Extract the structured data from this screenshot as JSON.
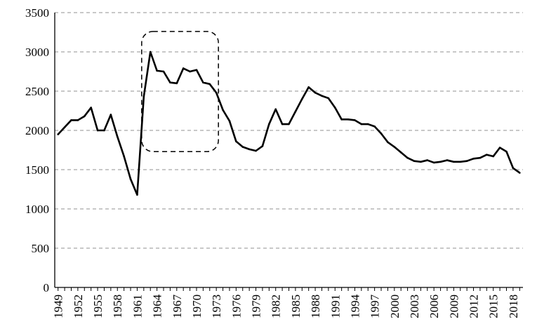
{
  "chart_data": {
    "type": "line",
    "title": "",
    "xlabel": "",
    "ylabel": "",
    "ylim": [
      0,
      3500
    ],
    "yticks": [
      0,
      500,
      1000,
      1500,
      2000,
      2500,
      3000,
      3500
    ],
    "grid": "horizontal dashed",
    "legend": "none",
    "x_tick_labels": [
      "1949",
      "1952",
      "1955",
      "1958",
      "1961",
      "1964",
      "1967",
      "1970",
      "1973",
      "1976",
      "1979",
      "1982",
      "1985",
      "1988",
      "1991",
      "1994",
      "1997",
      "2000",
      "2003",
      "2006",
      "2009",
      "2012",
      "2015",
      "2018"
    ],
    "x": [
      1949,
      1950,
      1951,
      1952,
      1953,
      1954,
      1955,
      1956,
      1957,
      1958,
      1959,
      1960,
      1961,
      1962,
      1963,
      1964,
      1965,
      1966,
      1967,
      1968,
      1969,
      1970,
      1971,
      1972,
      1973,
      1974,
      1975,
      1976,
      1977,
      1978,
      1979,
      1980,
      1981,
      1982,
      1983,
      1984,
      1985,
      1986,
      1987,
      1988,
      1989,
      1990,
      1991,
      1992,
      1993,
      1994,
      1995,
      1996,
      1997,
      1998,
      1999,
      2000,
      2001,
      2002,
      2003,
      2004,
      2005,
      2006,
      2007,
      2008,
      2009,
      2010,
      2011,
      2012,
      2013,
      2014,
      2015,
      2016,
      2017,
      2018,
      2019
    ],
    "series": [
      {
        "values": [
          1950,
          2040,
          2130,
          2130,
          2180,
          2290,
          2000,
          2000,
          2200,
          1920,
          1670,
          1380,
          1180,
          2430,
          3000,
          2760,
          2750,
          2610,
          2600,
          2790,
          2750,
          2770,
          2610,
          2590,
          2480,
          2260,
          2120,
          1860,
          1790,
          1760,
          1740,
          1800,
          2080,
          2270,
          2080,
          2080,
          2240,
          2400,
          2550,
          2480,
          2440,
          2410,
          2290,
          2140,
          2140,
          2130,
          2080,
          2080,
          2050,
          1960,
          1850,
          1790,
          1720,
          1650,
          1610,
          1600,
          1620,
          1590,
          1600,
          1620,
          1600,
          1600,
          1610,
          1640,
          1650,
          1690,
          1670,
          1780,
          1730,
          1520,
          1460
        ]
      }
    ],
    "annotation": {
      "type": "dashed-rounded-rectangle",
      "x_range": [
        1962,
        1973
      ],
      "y_range": [
        1730,
        3260
      ]
    },
    "colors": {
      "line": "#000000",
      "grid": "#a6a6a6",
      "background": "#ffffff"
    }
  }
}
